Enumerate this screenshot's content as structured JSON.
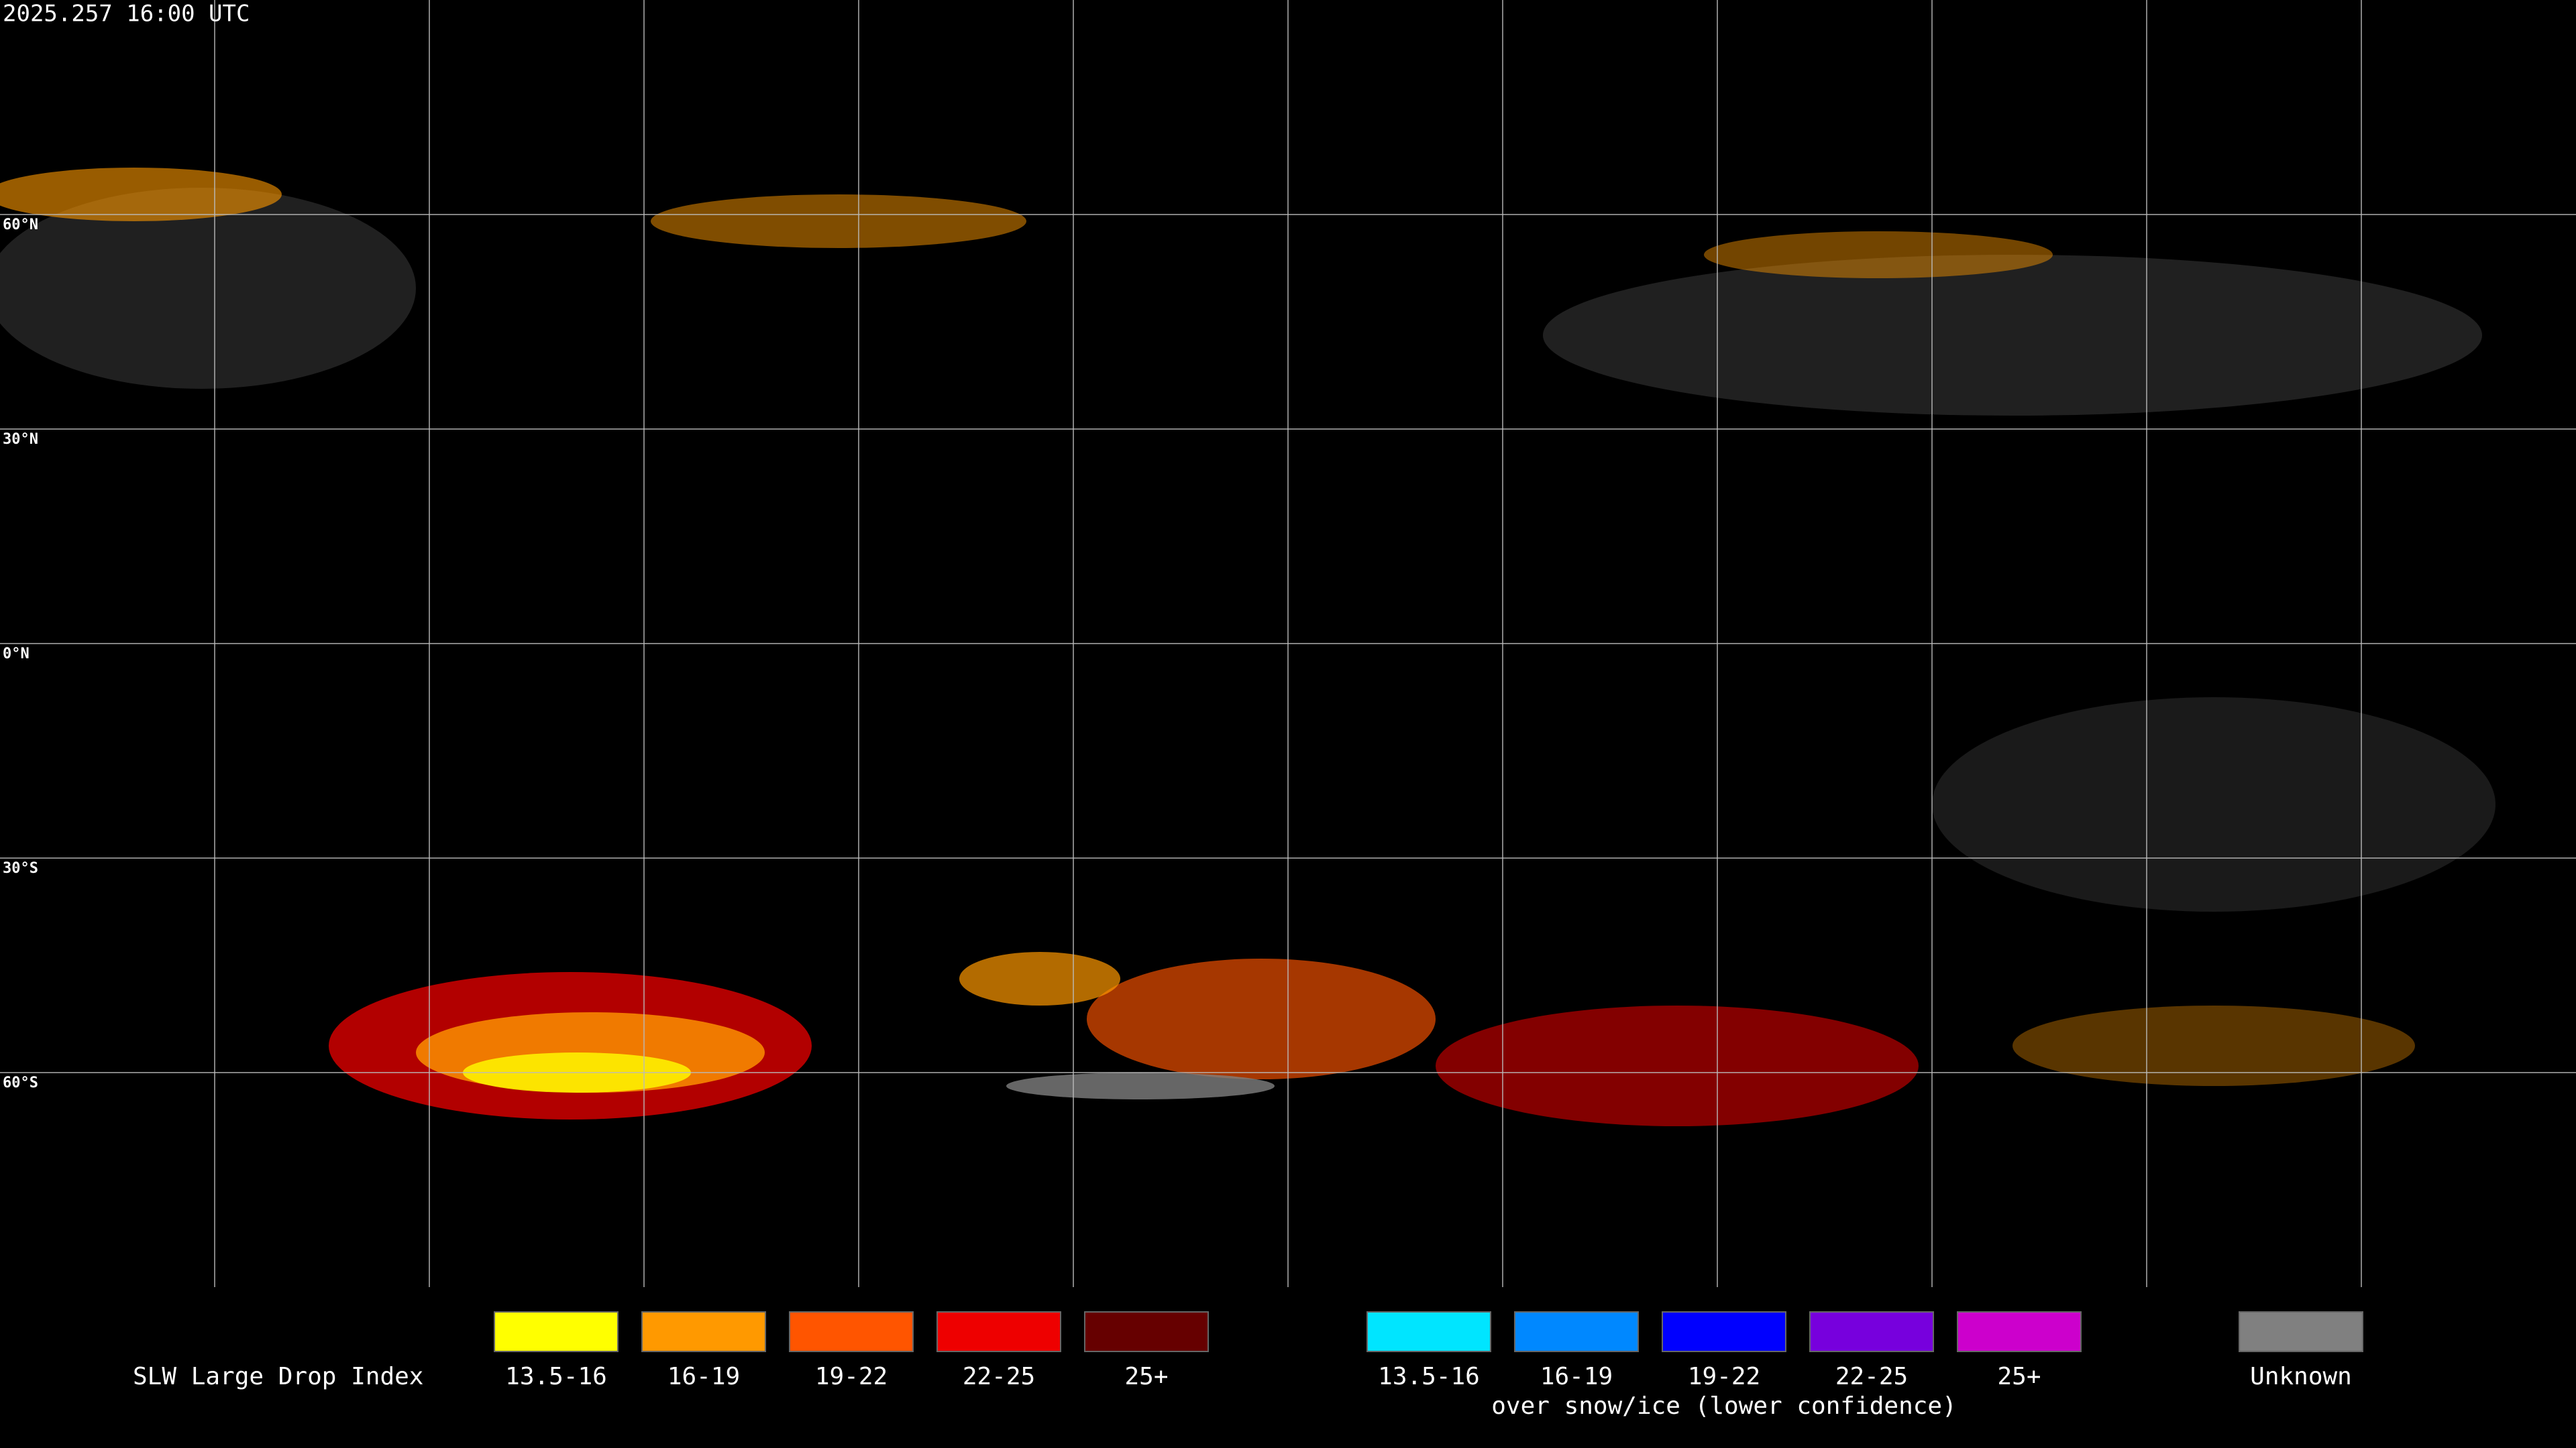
{
  "header": {
    "title": "2025.257 16:00 UTC"
  },
  "map": {
    "lat_labels": [
      "60°N",
      "30°N",
      "0°N",
      "30°S",
      "60°S"
    ]
  },
  "legend": {
    "title": "SLW Large Drop Index",
    "groups": [
      {
        "items": [
          {
            "label": "13.5-16",
            "color": "#ffff00"
          },
          {
            "label": "16-19",
            "color": "#ff9900"
          },
          {
            "label": "19-22",
            "color": "#ff5500"
          },
          {
            "label": "22-25",
            "color": "#ee0000"
          },
          {
            "label": "25+",
            "color": "#660000"
          }
        ]
      },
      {
        "caption": "over snow/ice (lower confidence)",
        "items": [
          {
            "label": "13.5-16",
            "color": "#00e5ff"
          },
          {
            "label": "16-19",
            "color": "#0088ff"
          },
          {
            "label": "19-22",
            "color": "#0000ff"
          },
          {
            "label": "22-25",
            "color": "#7700dd"
          },
          {
            "label": "25+",
            "color": "#cc00cc"
          }
        ]
      },
      {
        "items": [
          {
            "label": "Unknown",
            "color": "#808080"
          }
        ]
      }
    ]
  }
}
